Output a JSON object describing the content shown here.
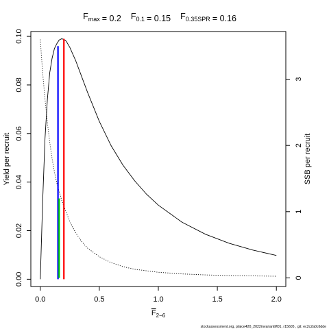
{
  "chart_data": {
    "type": "line",
    "title": {
      "parts": [
        {
          "base": "F",
          "sub": "max",
          "eq": "= 0.2"
        },
        {
          "base": "F",
          "sub": "0.1",
          "eq": "= 0.15"
        },
        {
          "base": "F",
          "sub": "0.35SPR",
          "eq": "= 0.16"
        }
      ]
    },
    "xlabel": {
      "base": "F",
      "sub": "2−6"
    },
    "ylabel_left": "Yield per recruit",
    "ylabel_right": "SSB per recruit",
    "xlim": [
      -0.08,
      2.08
    ],
    "ylim_left": [
      -0.003,
      0.102
    ],
    "ylim_right": [
      -0.13,
      3.72
    ],
    "x_ticks": [
      0.0,
      0.5,
      1.0,
      1.5,
      2.0
    ],
    "x_tick_labels": [
      "0.0",
      "0.5",
      "1.0",
      "1.5",
      "2.0"
    ],
    "y_left_ticks": [
      0.0,
      0.02,
      0.04,
      0.06,
      0.08,
      0.1
    ],
    "y_left_tick_labels": [
      "0.00",
      "0.02",
      "0.04",
      "0.06",
      "0.08",
      "0.10"
    ],
    "y_right_ticks": [
      0,
      1,
      2,
      3
    ],
    "y_right_tick_labels": [
      "0",
      "1",
      "2",
      "3"
    ],
    "series": [
      {
        "axis": "left",
        "style": "solid",
        "color": "#000000",
        "x": [
          0,
          0.02,
          0.04,
          0.06,
          0.08,
          0.1,
          0.12,
          0.14,
          0.16,
          0.18,
          0.2,
          0.22,
          0.25,
          0.3,
          0.35,
          0.4,
          0.5,
          0.6,
          0.7,
          0.8,
          0.9,
          1.0,
          1.2,
          1.4,
          1.6,
          1.8,
          2.0
        ],
        "y": [
          0,
          0.032,
          0.058,
          0.074,
          0.085,
          0.091,
          0.095,
          0.097,
          0.0985,
          0.099,
          0.0988,
          0.098,
          0.0955,
          0.09,
          0.0835,
          0.077,
          0.065,
          0.055,
          0.047,
          0.0405,
          0.035,
          0.0305,
          0.0235,
          0.0185,
          0.0148,
          0.012,
          0.0098
        ]
      },
      {
        "axis": "right",
        "style": "dotted",
        "color": "#000000",
        "x": [
          0,
          0.02,
          0.04,
          0.06,
          0.08,
          0.1,
          0.12,
          0.14,
          0.16,
          0.18,
          0.2,
          0.25,
          0.3,
          0.35,
          0.4,
          0.5,
          0.6,
          0.7,
          0.8,
          1.0,
          1.2,
          1.4,
          1.6,
          1.8,
          2.0
        ],
        "y": [
          3.6,
          3.1,
          2.7,
          2.35,
          2.05,
          1.8,
          1.6,
          1.43,
          1.3,
          1.18,
          1.08,
          0.85,
          0.68,
          0.55,
          0.45,
          0.32,
          0.23,
          0.17,
          0.13,
          0.085,
          0.06,
          0.045,
          0.035,
          0.03,
          0.025
        ]
      }
    ],
    "reference_lines": [
      {
        "label": "F0.1",
        "x": 0.15,
        "y_top": 0.096,
        "axis": "left",
        "color": "#0000ff"
      },
      {
        "label": "F0.35SPR",
        "x": 0.16,
        "y_top": 1.2,
        "axis": "right",
        "color": "#00cd00"
      },
      {
        "label": "Fmax",
        "x": 0.2,
        "y_top": 0.099,
        "axis": "left",
        "color": "#ff0000"
      }
    ],
    "grid": false,
    "legend": "none"
  },
  "footer": "stockassessment.org, plaice420_2022invariantM01, r15605 , git: ec2c2a0c6dde"
}
